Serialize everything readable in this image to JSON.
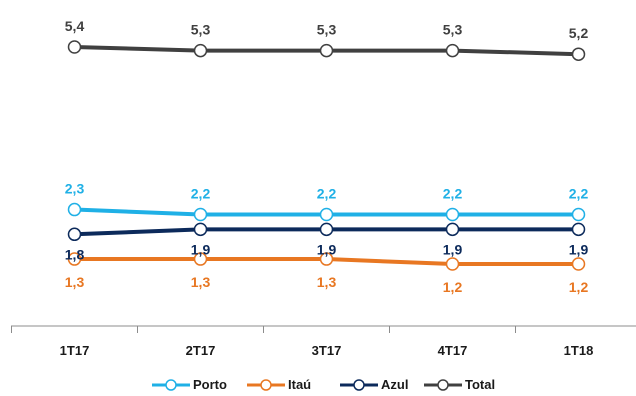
{
  "chart_data": {
    "type": "line",
    "categories": [
      "1T17",
      "2T17",
      "3T17",
      "4T17",
      "1T18"
    ],
    "series": [
      {
        "name": "Porto",
        "color": "#1fb0e6",
        "values": [
          2.3,
          2.2,
          2.2,
          2.2,
          2.2
        ],
        "labels": [
          "2,3",
          "2,2",
          "2,2",
          "2,2",
          "2,2"
        ],
        "label_pos": "above"
      },
      {
        "name": "Itaú",
        "color": "#e87722",
        "values": [
          1.3,
          1.3,
          1.3,
          1.2,
          1.2
        ],
        "labels": [
          "1,3",
          "1,3",
          "1,3",
          "1,2",
          "1,2"
        ],
        "label_pos": "below"
      },
      {
        "name": "Azul",
        "color": "#0c2a5b",
        "values": [
          1.8,
          1.9,
          1.9,
          1.9,
          1.9
        ],
        "labels": [
          "1,8",
          "1,9",
          "1,9",
          "1,9",
          "1,9"
        ],
        "label_pos": "between"
      },
      {
        "name": "Total",
        "color": "#404040",
        "values": [
          5.4,
          5.3,
          5.3,
          5.3,
          5.2
        ],
        "labels": [
          "5,4",
          "5,3",
          "5,3",
          "5,3",
          "5,2"
        ],
        "label_pos": "above"
      }
    ],
    "grid": false,
    "legend_position": "bottom"
  }
}
